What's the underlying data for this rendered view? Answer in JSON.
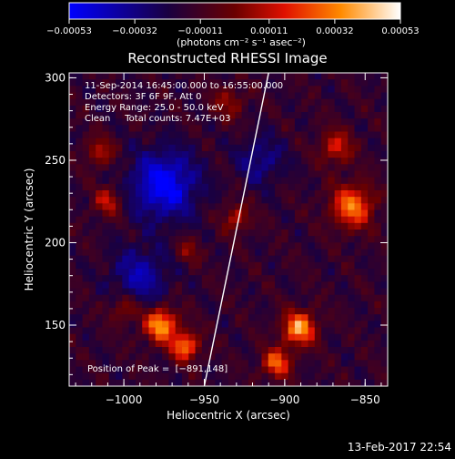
{
  "chart_data": {
    "type": "heatmap",
    "title": "Reconstructed RHESSI Image",
    "xlabel": "Heliocentric X (arcsec)",
    "ylabel": "Heliocentric Y (arcsec)",
    "xlim": [
      -1034,
      -836
    ],
    "ylim": [
      113,
      303
    ],
    "x_ticks": [
      -1000,
      -950,
      -900,
      -850
    ],
    "x_tick_labels": [
      "−1000",
      "−950",
      "−900",
      "−850"
    ],
    "y_ticks": [
      150,
      200,
      250,
      300
    ],
    "y_tick_labels": [
      "150",
      "200",
      "250",
      "300"
    ],
    "colorbar": {
      "range": [
        -0.00053,
        0.00053
      ],
      "ticks": [
        -0.00053,
        -0.00032,
        -0.00011,
        0.00011,
        0.00032,
        0.00053
      ],
      "tick_labels": [
        "−0.00053",
        "−0.00032",
        "−0.00011",
        "0.00011",
        "0.00032",
        "0.00053"
      ],
      "units_label": "(photons cm⁻² s⁻¹ asec⁻²)",
      "colors": [
        "#0000ff",
        "#1a0040",
        "#6a0000",
        "#e01000",
        "#ff8a00",
        "#ffffff"
      ]
    },
    "annotations": [
      "11-Sep-2014 16:45:00.000 to 16:55:00.000",
      "Detectors: 3F 6F 9F, Att 0",
      "Energy Range: 25.0 - 50.0 keV",
      "Clean     Total counts: 7.47E+03"
    ],
    "position_label": "Position of Peak =  [−891,148]",
    "limb_line": {
      "x": [
        -950,
        -910
      ],
      "y": [
        113,
        303
      ]
    },
    "sources": [
      {
        "x": -977,
        "y": 150,
        "amp": 1.0,
        "sigma": 7
      },
      {
        "x": -962,
        "y": 137,
        "amp": 0.85,
        "sigma": 6
      },
      {
        "x": -891,
        "y": 148,
        "amp": 1.0,
        "sigma": 7
      },
      {
        "x": -905,
        "y": 127,
        "amp": 0.8,
        "sigma": 6
      },
      {
        "x": -858,
        "y": 222,
        "amp": 0.85,
        "sigma": 9
      },
      {
        "x": -868,
        "y": 258,
        "amp": 0.55,
        "sigma": 7
      },
      {
        "x": -1010,
        "y": 225,
        "amp": 0.5,
        "sigma": 6
      },
      {
        "x": -1015,
        "y": 255,
        "amp": 0.45,
        "sigma": 6
      },
      {
        "x": -930,
        "y": 215,
        "amp": 0.45,
        "sigma": 6
      },
      {
        "x": -960,
        "y": 195,
        "amp": 0.35,
        "sigma": 5
      },
      {
        "x": -935,
        "y": 285,
        "amp": 0.35,
        "sigma": 7
      },
      {
        "x": -1000,
        "y": 160,
        "amp": 0.4,
        "sigma": 6
      }
    ],
    "dark_regions": [
      {
        "x": -975,
        "y": 235,
        "amp": -0.75,
        "sigma": 14
      },
      {
        "x": -990,
        "y": 180,
        "amp": -0.45,
        "sigma": 12
      },
      {
        "x": -915,
        "y": 250,
        "amp": -0.35,
        "sigma": 10
      }
    ]
  },
  "footer": {
    "timestamp": "13-Feb-2017 22:54"
  }
}
